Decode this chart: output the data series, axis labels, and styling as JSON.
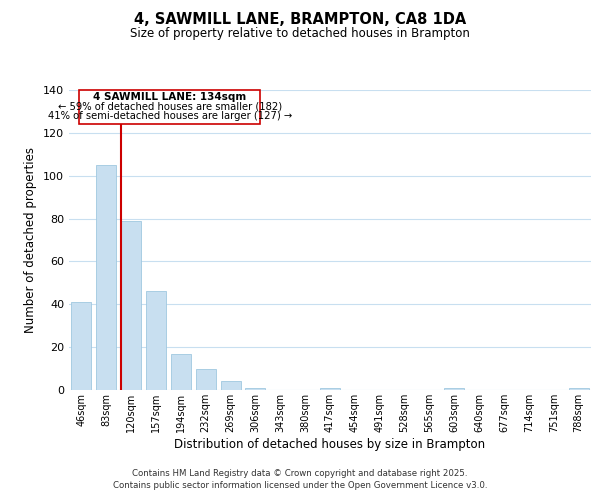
{
  "title": "4, SAWMILL LANE, BRAMPTON, CA8 1DA",
  "subtitle": "Size of property relative to detached houses in Brampton",
  "xlabel": "Distribution of detached houses by size in Brampton",
  "ylabel": "Number of detached properties",
  "bar_color": "#c8dff0",
  "bar_edgecolor": "#a0c8e0",
  "background_color": "#ffffff",
  "grid_color": "#c8dff0",
  "categories": [
    "46sqm",
    "83sqm",
    "120sqm",
    "157sqm",
    "194sqm",
    "232sqm",
    "269sqm",
    "306sqm",
    "343sqm",
    "380sqm",
    "417sqm",
    "454sqm",
    "491sqm",
    "528sqm",
    "565sqm",
    "603sqm",
    "640sqm",
    "677sqm",
    "714sqm",
    "751sqm",
    "788sqm"
  ],
  "values": [
    41,
    105,
    79,
    46,
    17,
    10,
    4,
    1,
    0,
    0,
    1,
    0,
    0,
    0,
    0,
    1,
    0,
    0,
    0,
    0,
    1
  ],
  "ylim": [
    0,
    140
  ],
  "yticks": [
    0,
    20,
    40,
    60,
    80,
    100,
    120,
    140
  ],
  "vline_x_index": 2,
  "vline_color": "#cc0000",
  "annotation_title": "4 SAWMILL LANE: 134sqm",
  "annotation_line1": "← 59% of detached houses are smaller (182)",
  "annotation_line2": "41% of semi-detached houses are larger (127) →",
  "annotation_box_color": "#ffffff",
  "annotation_box_edgecolor": "#cc0000",
  "footer_line1": "Contains HM Land Registry data © Crown copyright and database right 2025.",
  "footer_line2": "Contains public sector information licensed under the Open Government Licence v3.0."
}
